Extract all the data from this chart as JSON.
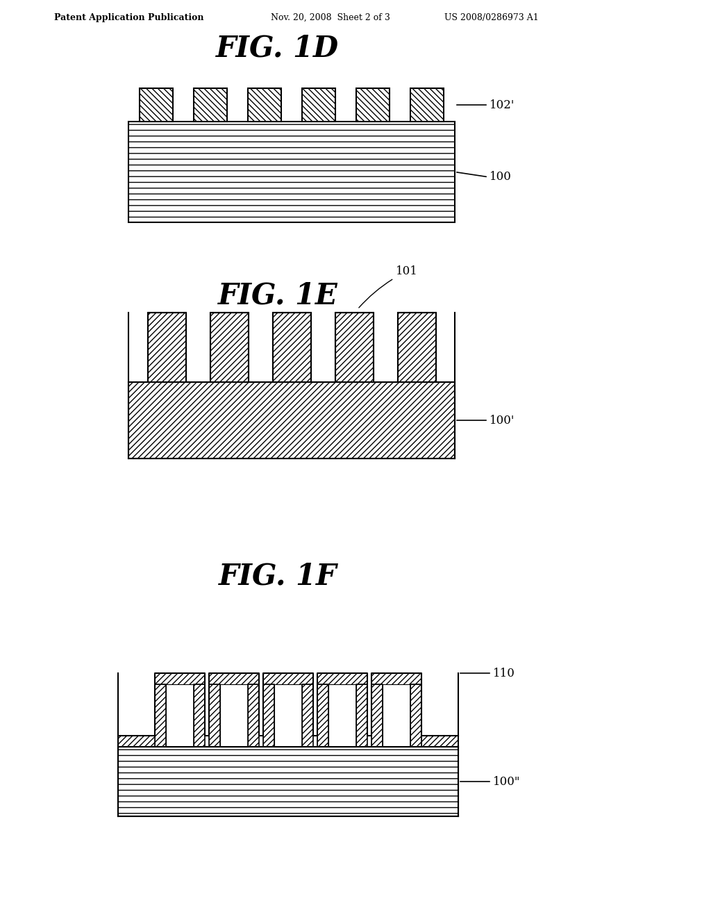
{
  "bg_color": "#ffffff",
  "header_left": "Patent Application Publication",
  "header_mid": "Nov. 20, 2008  Sheet 2 of 3",
  "header_right": "US 2008/0286973 A1",
  "fig1d_title": "FIG. 1D",
  "fig1e_title": "FIG. 1E",
  "fig1f_title": "FIG. 1F",
  "label_102prime": "102'",
  "label_100": "100",
  "label_100prime": "100'",
  "label_101": "101",
  "label_110": "110",
  "label_100doubleprime": "100\""
}
